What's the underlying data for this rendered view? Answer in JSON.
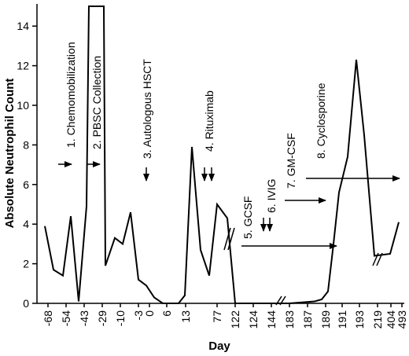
{
  "chart_data": {
    "type": "line",
    "title": "",
    "xlabel": "Day",
    "ylabel": "Absolute Neutrophil Count",
    "ylim": [
      0,
      15
    ],
    "y_ticks": [
      0,
      2,
      4,
      6,
      8,
      10,
      12,
      14
    ],
    "x_tick_labels": [
      "-68",
      "-54",
      "-43",
      "-29",
      "-10",
      "-3",
      "0",
      "6",
      "13",
      "77",
      "122",
      "124",
      "144",
      "183",
      "187",
      "189",
      "191",
      "193",
      "219",
      "404",
      "493"
    ],
    "grid": false,
    "axis_breaks": [
      "between 122 and 124",
      "between 144 and 183",
      "between 219 and 404"
    ],
    "series": [
      {
        "points": [
          {
            "x": "-68",
            "y": 3.9
          },
          {
            "x": "-61",
            "y": 1.7
          },
          {
            "x": "-54",
            "y": 1.4
          },
          {
            "x": "-50",
            "y": 4.4
          },
          {
            "x": "-43",
            "y": 0.1
          },
          {
            "x": "-36",
            "y": 4.9
          },
          {
            "x": "-34",
            "y": 15
          },
          {
            "x": "-29",
            "y": 15
          },
          {
            "x": "-24",
            "y": 15
          },
          {
            "x": "-17",
            "y": 1.9
          },
          {
            "x": "-10",
            "y": 3.3
          },
          {
            "x": "-6",
            "y": 3.0
          },
          {
            "x": "-3",
            "y": 4.6
          },
          {
            "x": "-2",
            "y": 1.2
          },
          {
            "x": "0",
            "y": 0.9
          },
          {
            "x": "2",
            "y": 0.3
          },
          {
            "x": "6",
            "y": 0.0
          },
          {
            "x": "8",
            "y": 0.0
          },
          {
            "x": "11",
            "y": 0.0
          },
          {
            "x": "12",
            "y": 0.4
          },
          {
            "x": "13",
            "y": 7.9
          },
          {
            "x": "20",
            "y": 2.7
          },
          {
            "x": "77",
            "y": 1.4
          },
          {
            "x": "95",
            "y": 5.0
          },
          {
            "x": "122",
            "y": 4.3
          },
          {
            "x": "122",
            "y": 0.0
          },
          {
            "x": "183",
            "y": 0.0
          },
          {
            "x": "185",
            "y": 0.1
          },
          {
            "x": "187",
            "y": 0.2
          },
          {
            "x": "189",
            "y": 0.6
          },
          {
            "x": "190",
            "y": 3.0
          },
          {
            "x": "191",
            "y": 5.6
          },
          {
            "x": "192",
            "y": 7.4
          },
          {
            "x": "193",
            "y": 12.3
          },
          {
            "x": "200",
            "y": 8.5
          },
          {
            "x": "219",
            "y": 2.4
          },
          {
            "x": "404",
            "y": 2.5
          },
          {
            "x": "493",
            "y": 4.1
          }
        ]
      }
    ],
    "annotations": [
      {
        "text": "1. Chemomobilization"
      },
      {
        "text": "2. PBSC Collection"
      },
      {
        "text": "3. Autologous HSCT"
      },
      {
        "text": "4. Rituximab"
      },
      {
        "text": "5. GCSF"
      },
      {
        "text": "6. IVIG"
      },
      {
        "text": "7. GM-CSF"
      },
      {
        "text": "8. Cyclosporine"
      }
    ]
  }
}
